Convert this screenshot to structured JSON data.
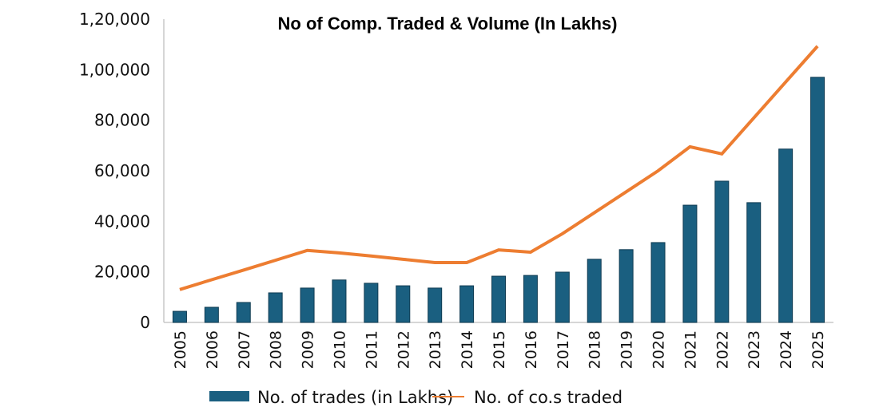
{
  "chart_data": {
    "type": "bar",
    "title": "No of Comp. Traded & Volume (In Lakhs)",
    "xlabel": "",
    "ylabel": "",
    "ylim": [
      0,
      120000
    ],
    "yticks": [
      0,
      20000,
      40000,
      60000,
      80000,
      100000,
      120000
    ],
    "ytick_labels": [
      "0",
      "20,000",
      "40,000",
      "60,000",
      "80,000",
      "1,00,000",
      "1,20,000"
    ],
    "grid": false,
    "legend_position": "bottom",
    "categories": [
      "2005",
      "2006",
      "2007",
      "2008",
      "2009",
      "2010",
      "2011",
      "2012",
      "2013",
      "2014",
      "2015",
      "2016",
      "2017",
      "2018",
      "2019",
      "2020",
      "2021",
      "2022",
      "2023",
      "2024",
      "2025"
    ],
    "series": [
      {
        "name": "No. of trades (in Lakhs)",
        "type": "bar",
        "color": "#1a5f80",
        "values": [
          4400,
          6000,
          7900,
          11700,
          13600,
          16800,
          15500,
          14500,
          13600,
          14500,
          18300,
          18600,
          19900,
          25000,
          28800,
          31600,
          46400,
          55900,
          47400,
          68600,
          97000
        ]
      },
      {
        "name": "No. of co.s traded",
        "type": "line",
        "color": "#ed7d31",
        "values": [
          13000,
          16900,
          20700,
          24600,
          28500,
          27500,
          26300,
          25000,
          23700,
          23700,
          28700,
          27800,
          35100,
          43400,
          51700,
          60000,
          69500,
          66700,
          80900,
          95100,
          109300
        ]
      }
    ]
  }
}
